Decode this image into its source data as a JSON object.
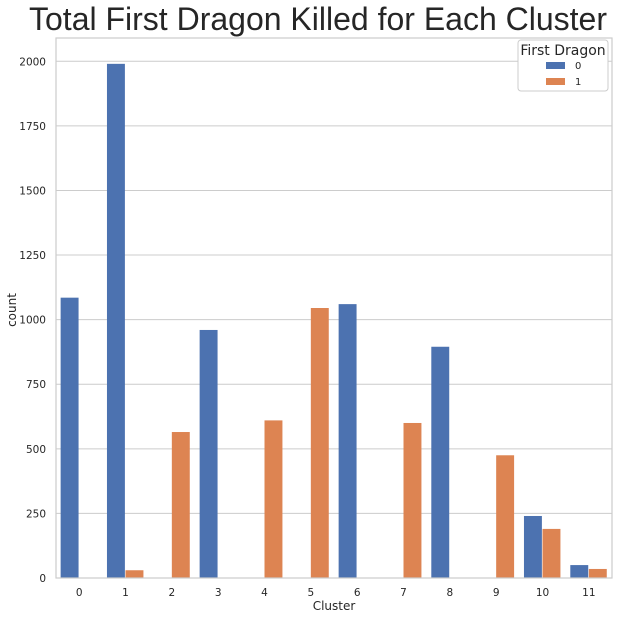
{
  "chart_data": {
    "type": "bar",
    "title": "Total First Dragon Killed for Each Cluster",
    "xlabel": "Cluster",
    "ylabel": "count",
    "categories": [
      "0",
      "1",
      "2",
      "3",
      "4",
      "5",
      "6",
      "7",
      "8",
      "9",
      "10",
      "11"
    ],
    "series": [
      {
        "name": "0",
        "color": "#4c72b0",
        "values": [
          1085,
          1990,
          0,
          960,
          0,
          0,
          1060,
          0,
          895,
          0,
          240,
          50
        ]
      },
      {
        "name": "1",
        "color": "#dd8452",
        "values": [
          0,
          30,
          565,
          0,
          610,
          1045,
          0,
          600,
          0,
          475,
          190,
          35
        ]
      }
    ],
    "ylim": [
      0,
      2090
    ],
    "yticks": [
      0,
      250,
      500,
      750,
      1000,
      1250,
      1500,
      1750,
      2000
    ],
    "grid": true,
    "legend": {
      "title": "First Dragon",
      "position": "top-right"
    }
  }
}
